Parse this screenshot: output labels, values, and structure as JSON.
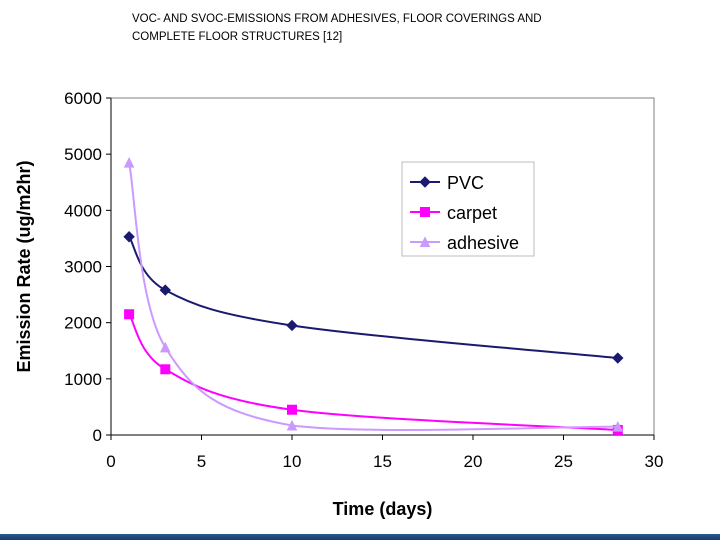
{
  "slide": {
    "title_line1": "VOC- AND SVOC-EMISSIONS FROM ADHESIVES, FLOOR COVERINGS AND",
    "title_line2": "COMPLETE FLOOR STRUCTURES [12]"
  },
  "chart_data": {
    "type": "line",
    "title": "",
    "xlabel": "Time (days)",
    "ylabel": "Emission Rate (ug/m2hr)",
    "xlim": [
      0,
      30
    ],
    "ylim": [
      0,
      6000
    ],
    "xticks": [
      0,
      5,
      10,
      15,
      20,
      25,
      30
    ],
    "yticks": [
      0,
      1000,
      2000,
      3000,
      4000,
      5000,
      6000
    ],
    "grid": false,
    "legend_position": "top-right",
    "series": [
      {
        "name": "PVC",
        "color": "#1a1a6e",
        "marker": "diamond",
        "x": [
          1,
          3,
          10,
          28
        ],
        "y": [
          3530,
          2580,
          1950,
          1370
        ]
      },
      {
        "name": "carpet",
        "color": "#ff00ff",
        "marker": "square",
        "x": [
          1,
          3,
          10,
          28
        ],
        "y": [
          2150,
          1170,
          450,
          90
        ]
      },
      {
        "name": "adhesive",
        "color": "#cc99ff",
        "marker": "triangle",
        "x": [
          1,
          3,
          10,
          28
        ],
        "y": [
          4850,
          1560,
          170,
          150
        ]
      }
    ]
  }
}
